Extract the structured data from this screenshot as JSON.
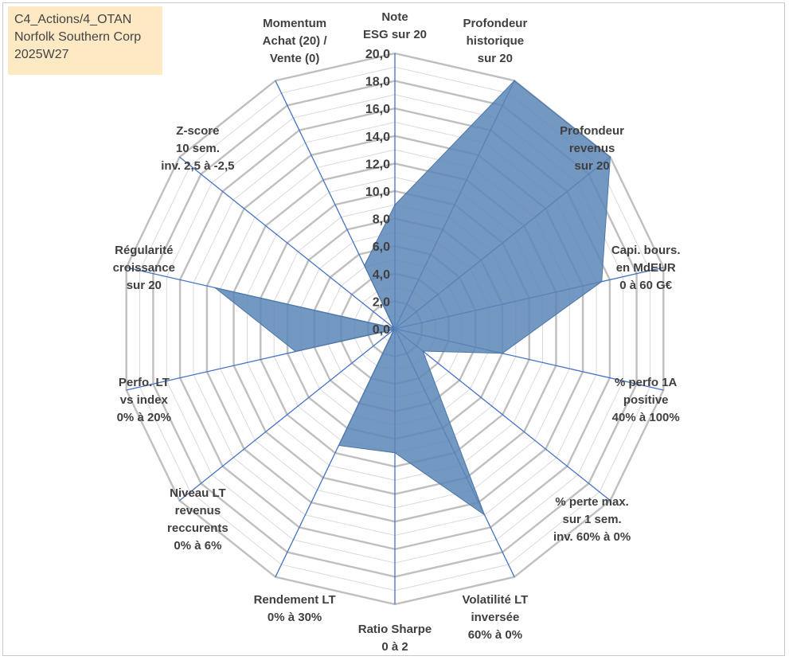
{
  "header": {
    "lines": [
      "C4_Actions/4_OTAN",
      "Norfolk Southern Corp",
      "2025W27"
    ]
  },
  "chart_data": {
    "type": "radar",
    "rmin": 0,
    "rmax": 20,
    "tick_step": 2,
    "ticks": [
      "0,0",
      "2,0",
      "4,0",
      "6,0",
      "8,0",
      "10,0",
      "12,0",
      "14,0",
      "16,0",
      "18,0",
      "20,0"
    ],
    "axes": [
      [
        "Note",
        "ESG sur 20"
      ],
      [
        "Profondeur",
        "historique",
        "sur 20"
      ],
      [
        "Profondeur",
        "revenus",
        "sur 20"
      ],
      [
        "Capi. bours.",
        "en MdEUR",
        "0 à 60 G€"
      ],
      [
        "% perfo 1A",
        "positive",
        "40% à 100%"
      ],
      [
        "% perte max.",
        "sur 1 sem.",
        "inv. 60% à 0%"
      ],
      [
        "Volatilité LT",
        "inversée",
        "60% à 0%"
      ],
      [
        "Ratio Sharpe",
        "0 à 2"
      ],
      [
        "Rendement LT",
        "0% à 30%"
      ],
      [
        "Niveau LT",
        "revenus",
        "reccurents",
        "0% à 6%"
      ],
      [
        "Perfo. LT",
        "vs index",
        "0% à 20%"
      ],
      [
        "Régularité",
        "croissance",
        "sur 20"
      ],
      [
        "Z-score",
        "10 sem.",
        "inv. 2,5 à -2,5"
      ],
      [
        "Momentum",
        "Achat (20) /",
        "Vente (0)"
      ]
    ],
    "values": [
      9,
      20,
      20,
      15.4,
      8,
      2.6,
      15,
      9,
      9.4,
      0.1,
      7.4,
      13.4,
      0.1,
      5.1
    ],
    "colors": {
      "fill": "#5a86b6",
      "fill_stroke": "#4b76a8",
      "spoke": "#4472c4",
      "grid_major": "#bfbfbf",
      "grid_minor": "#d9d9d9",
      "tick_text": "#404040"
    }
  }
}
